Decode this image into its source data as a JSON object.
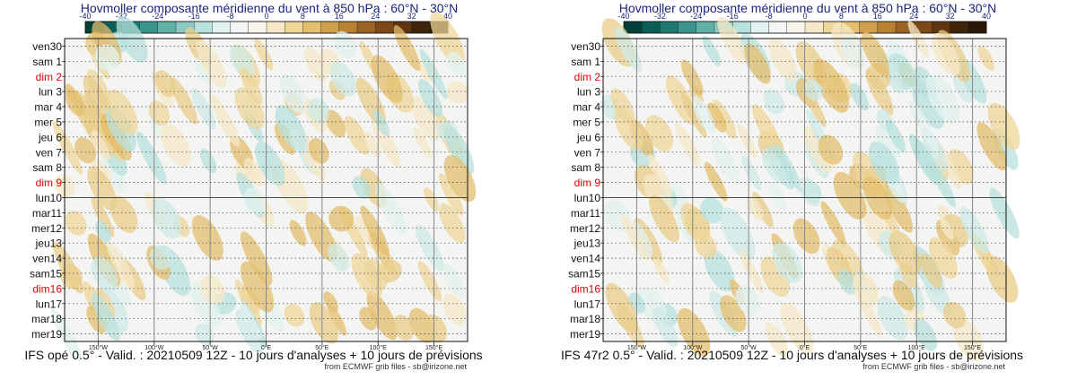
{
  "chart_data": [
    {
      "type": "heatmap",
      "title": "Hovmoller composante méridienne du vent à 850 hPa : 60°N - 30°N",
      "footer": "IFS opé 0.5° - Valid. : 20210509 12Z - 10 jours d'analyses + 10 jours de prévisions",
      "credit": "from ECMWF grib files - sb@irizone.net",
      "colorbar": {
        "ticks": [
          "-40",
          "-32",
          "-24",
          "-16",
          "-8",
          "0",
          "8",
          "16",
          "24",
          "32",
          "40"
        ],
        "vmin": -40,
        "vmax": 40,
        "colors": [
          "#01403a",
          "#0b5e55",
          "#1e7a70",
          "#3a968c",
          "#5fb0a6",
          "#8ccac1",
          "#b8e2dd",
          "#e1f1ef",
          "#f5f5f5",
          "#faf5ec",
          "#f6e8c8",
          "#efd699",
          "#e4bf6d",
          "#d0a04a",
          "#b98232",
          "#9a6422",
          "#7d4a17",
          "#5f3510",
          "#3f240a",
          "#2a1806"
        ]
      },
      "y_labels": [
        "ven30",
        "sam 1",
        "dim 2",
        "lun 3",
        "mar 4",
        "mer 5",
        "jeu 6",
        "ven 7",
        "sam 8",
        "dim 9",
        "lun10",
        "mar11",
        "mer12",
        "jeu13",
        "ven14",
        "sam15",
        "dim16",
        "lun17",
        "mar18",
        "mer19"
      ],
      "sunday_labels": [
        "dim 2",
        "dim 9",
        "dim16"
      ],
      "sunday_color": "#e00000",
      "x_ticks": [
        "150°W",
        "100°W",
        "50°W",
        "0°E",
        "50°E",
        "100°E",
        "150°E"
      ],
      "x_tick_values": [
        -150,
        -100,
        -50,
        0,
        50,
        100,
        150
      ],
      "xlim": [
        -180,
        180
      ],
      "analysis_split_label": "lun10"
    },
    {
      "type": "heatmap",
      "title": "Hovmoller composante méridienne du vent à 850 hPa : 60°N - 30°N",
      "footer": "IFS 47r2 0.5° - Valid. : 20210509 12Z - 10 jours d'analyses + 10 jours de prévisions",
      "credit": "from ECMWF grib files - sb@irizone.net",
      "colorbar": {
        "ticks": [
          "-40",
          "-32",
          "-24",
          "-16",
          "-8",
          "0",
          "8",
          "16",
          "24",
          "32",
          "40"
        ],
        "vmin": -40,
        "vmax": 40,
        "colors": [
          "#01403a",
          "#0b5e55",
          "#1e7a70",
          "#3a968c",
          "#5fb0a6",
          "#8ccac1",
          "#b8e2dd",
          "#e1f1ef",
          "#f5f5f5",
          "#faf5ec",
          "#f6e8c8",
          "#efd699",
          "#e4bf6d",
          "#d0a04a",
          "#b98232",
          "#9a6422",
          "#7d4a17",
          "#5f3510",
          "#3f240a",
          "#2a1806"
        ]
      },
      "y_labels": [
        "ven30",
        "sam 1",
        "dim 2",
        "lun 3",
        "mar 4",
        "mer 5",
        "jeu 6",
        "ven 7",
        "sam 8",
        "dim 9",
        "lun10",
        "mar11",
        "mer12",
        "jeu13",
        "ven14",
        "sam15",
        "dim16",
        "lun17",
        "mar18",
        "mer19"
      ],
      "sunday_labels": [
        "dim 2",
        "dim 9",
        "dim16"
      ],
      "sunday_color": "#e00000",
      "x_ticks": [
        "150°W",
        "100°W",
        "50°W",
        "0°E",
        "50°E",
        "100°E",
        "150°E"
      ],
      "x_tick_values": [
        -150,
        -100,
        -50,
        0,
        50,
        100,
        150
      ],
      "xlim": [
        -180,
        180
      ],
      "analysis_split_label": "lun10"
    }
  ]
}
